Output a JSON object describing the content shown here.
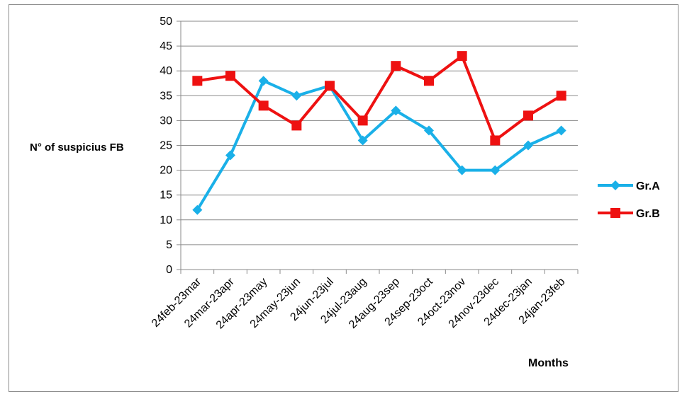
{
  "chart_data": {
    "type": "line",
    "title": "",
    "xlabel": "Months",
    "ylabel": "N° of suspicius FB",
    "ylim": [
      0,
      50
    ],
    "yticks": [
      0,
      5,
      10,
      15,
      20,
      25,
      30,
      35,
      40,
      45,
      50
    ],
    "grid": true,
    "legend_position": "right",
    "categories": [
      "24feb-23mar",
      "24mar-23apr",
      "24apr-23may",
      "24may-23jun",
      "24jun-23jul",
      "24jul-23aug",
      "24aug-23sep",
      "24sep-23oct",
      "24oct-23nov",
      "24nov-23dec",
      "24dec-23jan",
      "24jan-23feb"
    ],
    "series": [
      {
        "name": "Gr.A",
        "color": "#1ab0e8",
        "marker": "diamond",
        "values": [
          12,
          23,
          38,
          35,
          37,
          26,
          32,
          28,
          20,
          20,
          25,
          28
        ]
      },
      {
        "name": "Gr.B",
        "color": "#ee1111",
        "marker": "square",
        "values": [
          38,
          39,
          33,
          29,
          37,
          30,
          41,
          38,
          43,
          26,
          31,
          35
        ]
      }
    ]
  }
}
